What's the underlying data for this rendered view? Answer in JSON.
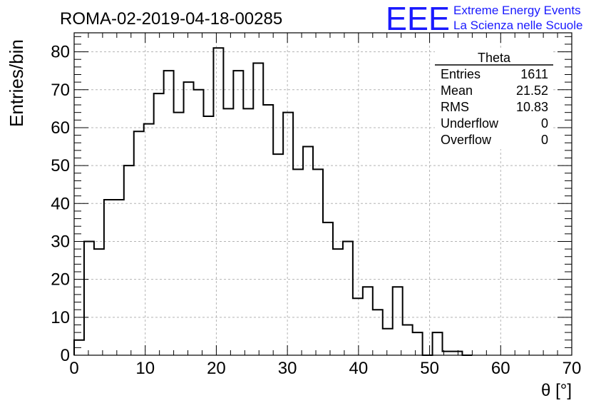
{
  "chart_data": {
    "type": "histogram",
    "title": "ROMA-02-2019-04-18-00285",
    "xlabel": "θ [°]",
    "ylabel": "Entries/bin",
    "xlim": [
      0,
      70
    ],
    "ylim": [
      0,
      85
    ],
    "x_ticks": [
      0,
      10,
      20,
      30,
      40,
      50,
      60,
      70
    ],
    "y_ticks": [
      0,
      10,
      20,
      30,
      40,
      50,
      60,
      70,
      80
    ],
    "grid": true,
    "bin_width": 1.4,
    "values": [
      4,
      30,
      28,
      41,
      41,
      50,
      59,
      61,
      69,
      75,
      64,
      72,
      70,
      63,
      81,
      65,
      75,
      65,
      77,
      66,
      53,
      64,
      49,
      55,
      49,
      35,
      28,
      30,
      15,
      18,
      12,
      7,
      18,
      8,
      6,
      0,
      6,
      1,
      1,
      0
    ]
  },
  "stats_box": {
    "title": "Theta",
    "rows": [
      {
        "label": "Entries",
        "value": "1611"
      },
      {
        "label": "Mean",
        "value": "21.52"
      },
      {
        "label": "RMS",
        "value": "10.83"
      },
      {
        "label": "Underflow",
        "value": "0"
      },
      {
        "label": "Overflow",
        "value": "0"
      }
    ]
  },
  "logo": {
    "mark": "EEE",
    "line1": "Extreme Energy Events",
    "line2": "La Scienza nelle Scuole",
    "color": "#1a1aff"
  }
}
